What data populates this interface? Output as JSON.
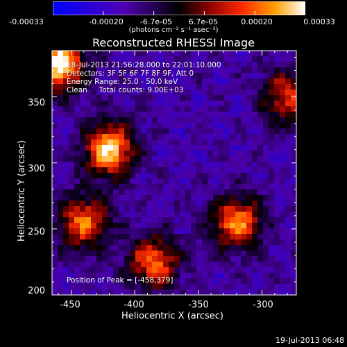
{
  "colorbar": {
    "ticks": [
      "-0.00033",
      "-0.00020",
      "-6.7e-05",
      "6.7e-05",
      "0.00020",
      "0.00033"
    ],
    "units": "(photons cm⁻² s⁻¹ asec⁻²)"
  },
  "chart_data": {
    "type": "heatmap",
    "title": "Reconstructed RHESSI Image",
    "xlabel": "Heliocentric X (arcsec)",
    "ylabel": "Heliocentric Y (arcsec)",
    "xlim": [
      -465,
      -273
    ],
    "ylim": [
      200,
      385
    ],
    "xticks": [
      -450,
      -400,
      -350,
      -300
    ],
    "yticks": [
      200,
      250,
      300,
      350
    ],
    "colorbar_range": [
      -0.00033,
      0.00033
    ],
    "peak": [
      -458,
      379
    ],
    "colormap": [
      "#0000ff",
      "#4b00a8",
      "#000000",
      "#8a0000",
      "#ff3000",
      "#ffa000",
      "#ffffff"
    ],
    "bright_regions": [
      {
        "x": -460,
        "y": 375,
        "level": 1.0
      },
      {
        "x": -420,
        "y": 310,
        "level": 0.9
      },
      {
        "x": -440,
        "y": 255,
        "level": 0.7
      },
      {
        "x": -385,
        "y": 225,
        "level": 0.7
      },
      {
        "x": -320,
        "y": 255,
        "level": 0.75
      },
      {
        "x": -280,
        "y": 350,
        "level": 0.6
      }
    ]
  },
  "info": {
    "line1": "18-Jul-2013 21:56:28.000 to 22:01:10.000",
    "line2": "Detectors: 3F 5F 6F 7F 8F 9F, Att 0",
    "line3": "Energy Range: 25.0 - 50.0 keV",
    "line4": "Clean     Total counts: 9.00E+03",
    "peak": "Position of Peak = [-458,379]"
  },
  "footer": {
    "timestamp": "19-Jul-2013 06:48"
  }
}
